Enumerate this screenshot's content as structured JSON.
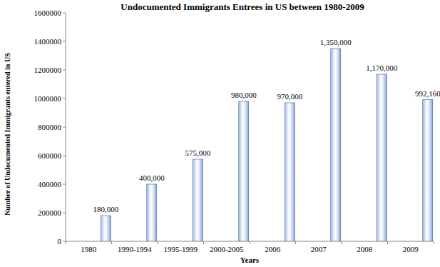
{
  "chart_data": {
    "type": "bar",
    "title": "Undocumented Immigrants Entrees in US between 1980-2009",
    "x_label": "Years",
    "y_label": "Number of Undocumented  Immigrants entered in US",
    "categories": [
      "1980",
      "1990-1994",
      "1995-1999",
      "2000-2005",
      "2006",
      "2007",
      "2008",
      "2009"
    ],
    "values": [
      180000,
      400000,
      575000,
      980000,
      970000,
      1350000,
      1170000,
      992160
    ],
    "value_labels": [
      "180,000",
      "400,000",
      "575,000",
      "980,000",
      "970,000",
      "1,350,000",
      "1,170,000",
      "992,160"
    ],
    "data_labels": true,
    "color": "#7f9fd8",
    "ylim": [
      0,
      1600000
    ],
    "yticks": [
      0,
      200000,
      400000,
      600000,
      800000,
      1000000,
      1200000,
      1400000,
      1600000
    ],
    "grid": false
  }
}
